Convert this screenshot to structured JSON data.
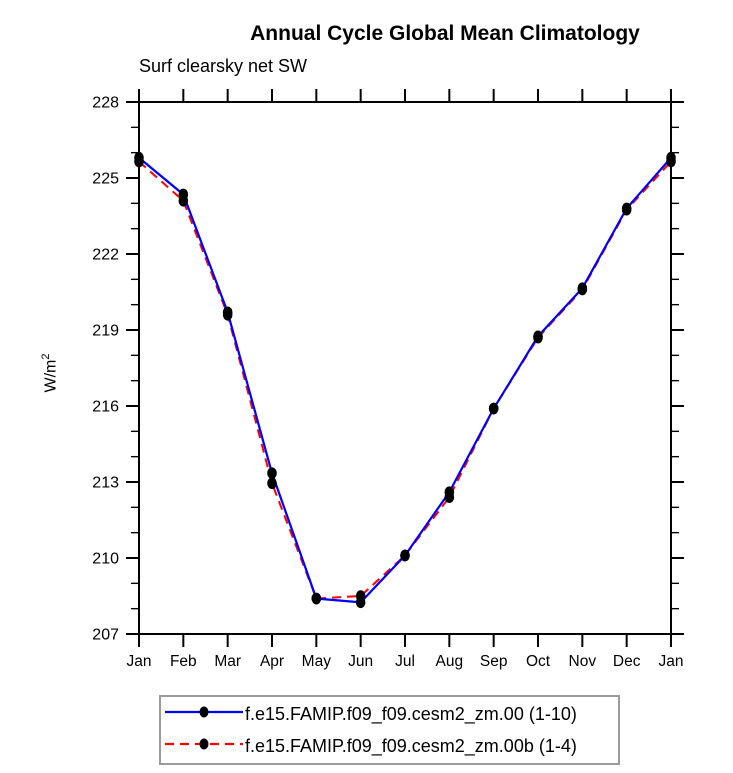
{
  "chart_data": {
    "type": "line",
    "title": "Annual Cycle Global Mean Climatology",
    "subtitle": "Surf clearsky net SW",
    "ylabel": "W/m²",
    "xlabel": "",
    "categories": [
      "Jan",
      "Feb",
      "Mar",
      "Apr",
      "May",
      "Jun",
      "Jul",
      "Aug",
      "Sep",
      "Oct",
      "Nov",
      "Dec",
      "Jan"
    ],
    "ylim": [
      207,
      228
    ],
    "ytick_major": [
      207,
      210,
      213,
      216,
      219,
      222,
      225,
      228
    ],
    "ytick_minor_step": 1,
    "grid": false,
    "legend_position": "bottom",
    "marker": "filled-circle",
    "marker_color": "#000000",
    "series": [
      {
        "name": "f.e15.FAMIP.f09_f09.cesm2_zm.00 (1-10)",
        "color": "#0000ff",
        "style": "solid",
        "values": [
          225.8,
          224.35,
          219.7,
          213.35,
          208.4,
          208.25,
          210.1,
          212.6,
          215.9,
          218.75,
          220.65,
          223.8,
          225.8
        ]
      },
      {
        "name": "f.e15.FAMIP.f09_f09.cesm2_zm.00b (1-4)",
        "color": "#ff0000",
        "style": "dashed",
        "values": [
          225.65,
          224.1,
          219.6,
          212.95,
          208.4,
          208.5,
          210.1,
          212.4,
          215.9,
          218.7,
          220.6,
          223.75,
          225.65
        ]
      }
    ]
  }
}
